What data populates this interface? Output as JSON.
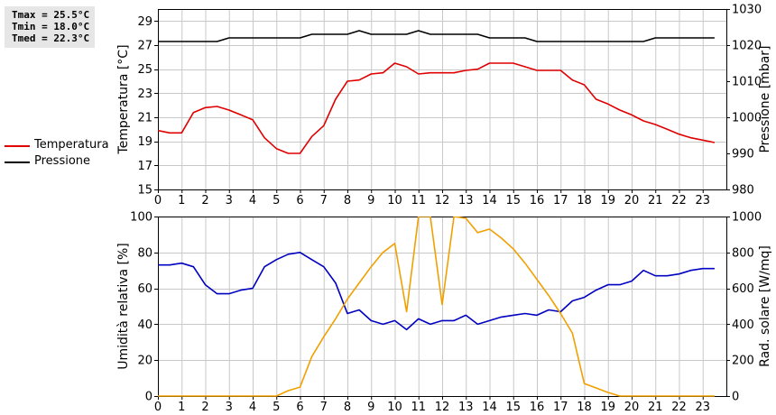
{
  "stats": {
    "tmax": "Tmax = 25.5°C",
    "tmin": "Tmin = 18.0°C",
    "tmed": "Tmed = 22.3°C"
  },
  "legend_top": [
    {
      "label": "Temperatura",
      "color": "#e00000"
    },
    {
      "label": "Pressione",
      "color": "#000000"
    }
  ],
  "legend_bottom": [
    {
      "label": "Umidità",
      "color": "#0000c0"
    },
    {
      "label": "Rad. sol.",
      "color": "#f0a000"
    }
  ],
  "chart_data": [
    {
      "type": "line",
      "ylabel_left": "Temperatura [°C]",
      "ylabel_right": "Pressione [mbar]",
      "xlim": [
        0,
        24
      ],
      "x_ticks": [
        0,
        1,
        2,
        3,
        4,
        5,
        6,
        7,
        8,
        9,
        10,
        11,
        12,
        13,
        14,
        15,
        16,
        17,
        18,
        19,
        20,
        21,
        22,
        23
      ],
      "ylim_left": [
        15,
        30
      ],
      "y_ticks_left": [
        15,
        17,
        19,
        21,
        23,
        25,
        27,
        29
      ],
      "ylim_right": [
        980,
        1030
      ],
      "y_ticks_right": [
        980,
        990,
        1000,
        1010,
        1020,
        1030
      ],
      "grid": true,
      "series": [
        {
          "name": "Temperatura",
          "axis": "left",
          "color": "#e00000",
          "x": [
            0,
            0.5,
            1,
            1.5,
            2,
            2.5,
            3,
            3.5,
            4,
            4.5,
            5,
            5.5,
            6,
            6.5,
            7,
            7.5,
            8,
            8.5,
            9,
            9.5,
            10,
            10.5,
            11,
            11.5,
            12,
            12.5,
            13,
            13.5,
            14,
            14.5,
            15,
            15.5,
            16,
            16.5,
            17,
            17.5,
            18,
            18.5,
            19,
            19.5,
            20,
            20.5,
            21,
            21.5,
            22,
            22.5,
            23,
            23.5
          ],
          "y": [
            19.9,
            19.7,
            19.7,
            21.4,
            21.8,
            21.9,
            21.6,
            21.2,
            20.8,
            19.3,
            18.4,
            18.0,
            18.0,
            19.4,
            20.3,
            22.5,
            24.0,
            24.1,
            24.6,
            24.7,
            25.5,
            25.2,
            24.6,
            24.7,
            24.7,
            24.7,
            24.9,
            25.0,
            25.5,
            25.5,
            25.5,
            25.2,
            24.9,
            24.9,
            24.9,
            24.1,
            23.7,
            22.5,
            22.1,
            21.6,
            21.2,
            20.7,
            20.4,
            20.0,
            19.6,
            19.3,
            19.1,
            18.9
          ]
        },
        {
          "name": "Pressione",
          "axis": "right",
          "color": "#000000",
          "x": [
            0,
            0.5,
            1,
            1.5,
            2,
            2.5,
            3,
            3.5,
            4,
            4.5,
            5,
            5.5,
            6,
            6.5,
            7,
            7.5,
            8,
            8.5,
            9,
            9.5,
            10,
            10.5,
            11,
            11.5,
            12,
            12.5,
            13,
            13.5,
            14,
            14.5,
            15,
            15.5,
            16,
            16.5,
            17,
            17.5,
            18,
            18.5,
            19,
            19.5,
            20,
            20.5,
            21,
            21.5,
            22,
            22.5,
            23,
            23.5
          ],
          "y": [
            1021,
            1021,
            1021,
            1021,
            1021,
            1021,
            1022,
            1022,
            1022,
            1022,
            1022,
            1022,
            1022,
            1023,
            1023,
            1023,
            1023,
            1024,
            1023,
            1023,
            1023,
            1023,
            1024,
            1023,
            1023,
            1023,
            1023,
            1023,
            1022,
            1022,
            1022,
            1022,
            1021,
            1021,
            1021,
            1021,
            1021,
            1021,
            1021,
            1021,
            1021,
            1021,
            1022,
            1022,
            1022,
            1022,
            1022,
            1022
          ]
        }
      ]
    },
    {
      "type": "line",
      "ylabel_left": "Umidità relativa [%]",
      "ylabel_right": "Rad. solare [W/mq]",
      "xlim": [
        0,
        24
      ],
      "x_ticks": [
        0,
        1,
        2,
        3,
        4,
        5,
        6,
        7,
        8,
        9,
        10,
        11,
        12,
        13,
        14,
        15,
        16,
        17,
        18,
        19,
        20,
        21,
        22,
        23
      ],
      "ylim_left": [
        0,
        100
      ],
      "y_ticks_left": [
        0,
        20,
        40,
        60,
        80,
        100
      ],
      "ylim_right": [
        0,
        1000
      ],
      "y_ticks_right": [
        0,
        200,
        400,
        600,
        800,
        1000
      ],
      "grid": true,
      "series": [
        {
          "name": "Umidità",
          "axis": "left",
          "color": "#0000c0",
          "x": [
            0,
            0.5,
            1,
            1.5,
            2,
            2.5,
            3,
            3.5,
            4,
            4.5,
            5,
            5.5,
            6,
            6.5,
            7,
            7.5,
            8,
            8.5,
            9,
            9.5,
            10,
            10.5,
            11,
            11.5,
            12,
            12.5,
            13,
            13.5,
            14,
            14.5,
            15,
            15.5,
            16,
            16.5,
            17,
            17.5,
            18,
            18.5,
            19,
            19.5,
            20,
            20.5,
            21,
            21.5,
            22,
            22.5,
            23,
            23.5
          ],
          "y": [
            73,
            73,
            74,
            72,
            62,
            57,
            57,
            59,
            60,
            72,
            76,
            79,
            80,
            76,
            72,
            63,
            46,
            48,
            42,
            40,
            42,
            37,
            43,
            40,
            42,
            42,
            45,
            40,
            42,
            44,
            45,
            46,
            45,
            48,
            47,
            53,
            55,
            59,
            62,
            62,
            64,
            70,
            67,
            67,
            68,
            70,
            71,
            71
          ]
        },
        {
          "name": "Rad. sol.",
          "axis": "right",
          "color": "#f0a000",
          "x": [
            0,
            0.5,
            1,
            1.5,
            2,
            2.5,
            3,
            3.5,
            4,
            4.5,
            5,
            5.5,
            6,
            6.5,
            7,
            7.5,
            8,
            8.5,
            9,
            9.5,
            10,
            10.5,
            11,
            11.5,
            12,
            12.5,
            13,
            13.5,
            14,
            14.5,
            15,
            15.5,
            16,
            16.5,
            17,
            17.5,
            18,
            18.5,
            19,
            19.5,
            20,
            20.5,
            21,
            21.5,
            22,
            22.5,
            23,
            23.5
          ],
          "y": [
            0,
            0,
            0,
            0,
            0,
            0,
            0,
            0,
            0,
            0,
            0,
            30,
            50,
            220,
            330,
            430,
            540,
            630,
            720,
            800,
            850,
            470,
            1000,
            1000,
            510,
            1000,
            990,
            910,
            930,
            880,
            820,
            740,
            650,
            560,
            460,
            350,
            70,
            45,
            20,
            0,
            0,
            0,
            0,
            0,
            0,
            0,
            0,
            0
          ]
        }
      ]
    }
  ]
}
